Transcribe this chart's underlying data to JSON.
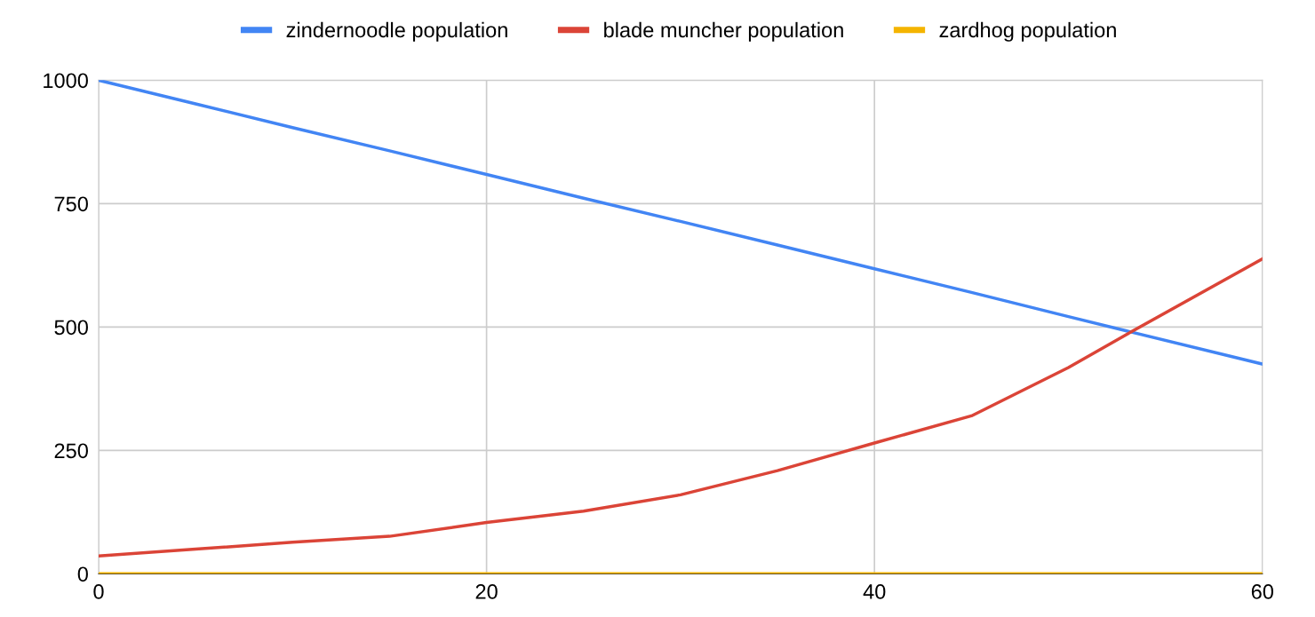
{
  "chart_data": {
    "type": "line",
    "x": [
      0,
      5,
      10,
      15,
      20,
      25,
      30,
      35,
      40,
      45,
      50,
      53,
      60
    ],
    "series": [
      {
        "name": "zindernoodle population",
        "color": "#4285f4",
        "values": [
          1000,
          952,
          904,
          857,
          809,
          761,
          714,
          666,
          618,
          570,
          521,
          492,
          425
        ]
      },
      {
        "name": "blade muncher population",
        "color": "#db4437",
        "values": [
          36,
          50,
          64,
          76,
          104,
          127,
          160,
          209,
          265,
          320,
          418,
          485,
          638
        ]
      },
      {
        "name": "zardhog population",
        "color": "#f4b400",
        "values": [
          0,
          0,
          0,
          0,
          0,
          0,
          0,
          0,
          0,
          0,
          0,
          0,
          0
        ]
      }
    ],
    "xlim": [
      0,
      60
    ],
    "xticks": [
      0,
      20,
      40,
      60
    ],
    "ylim": [
      0,
      1000
    ],
    "yticks": [
      0,
      250,
      500,
      750,
      1000
    ],
    "grid": true,
    "legend": "top",
    "marker": "none",
    "line_style": "solid"
  }
}
